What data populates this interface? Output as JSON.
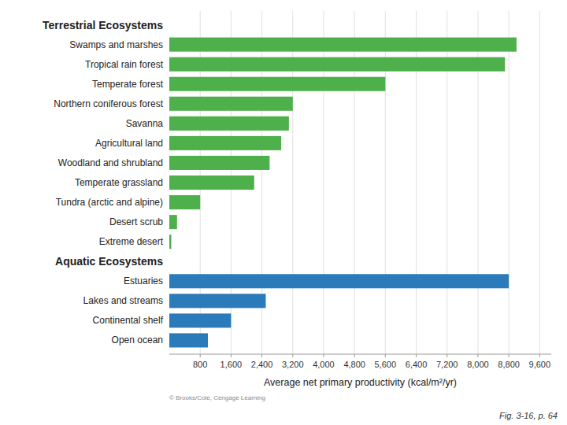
{
  "chart_data": {
    "type": "bar",
    "orientation": "horizontal",
    "categories": [
      "Terrestrial Ecosystems",
      "Swamps and marshes",
      "Tropical rain forest",
      "Temperate forest",
      "Northern coniferous forest",
      "Savanna",
      "Agricultural land",
      "Woodland and shrubland",
      "Temperate grassland",
      "Tundra (arctic and alpine)",
      "Desert scrub",
      "Extreme desert",
      "Aquatic Ecosystems",
      "Estuaries",
      "Lakes and streams",
      "Continental shelf",
      "Open ocean"
    ],
    "values": [
      null,
      9000,
      8700,
      5600,
      3200,
      3100,
      2900,
      2600,
      2200,
      800,
      200,
      50,
      null,
      8800,
      2500,
      1600,
      1000
    ],
    "colors": [
      null,
      "#4db04a",
      "#4db04a",
      "#4db04a",
      "#4db04a",
      "#4db04a",
      "#4db04a",
      "#4db04a",
      "#4db04a",
      "#4db04a",
      "#4db04a",
      "#4db04a",
      null,
      "#2b7bba",
      "#2b7bba",
      "#2b7bba",
      "#2b7bba"
    ],
    "x_label": "Average net primary productivity (kcal/m²/yr)",
    "xlim": [
      0,
      9900
    ],
    "xticks": [
      800,
      {
        "value": 1600,
        "label": "1,600"
      },
      {
        "value": 2400,
        "label": "2,400"
      },
      {
        "value": 3200,
        "label": "3,200"
      },
      {
        "value": 4000,
        "label": "4,000"
      },
      {
        "value": 4800,
        "label": "4,800"
      },
      {
        "value": 5600,
        "label": "5,600"
      },
      {
        "value": 6400,
        "label": "6,400"
      },
      {
        "value": 7200,
        "label": "7,200"
      },
      {
        "value": 8000,
        "label": "8,000"
      },
      {
        "value": 8800,
        "label": "8,800"
      },
      {
        "value": 9600,
        "label": "9,600"
      }
    ],
    "grid": true,
    "annotations": [
      "© Brooks/Cole, Cengage Learning",
      "Fig. 3-16, p. 64"
    ]
  }
}
